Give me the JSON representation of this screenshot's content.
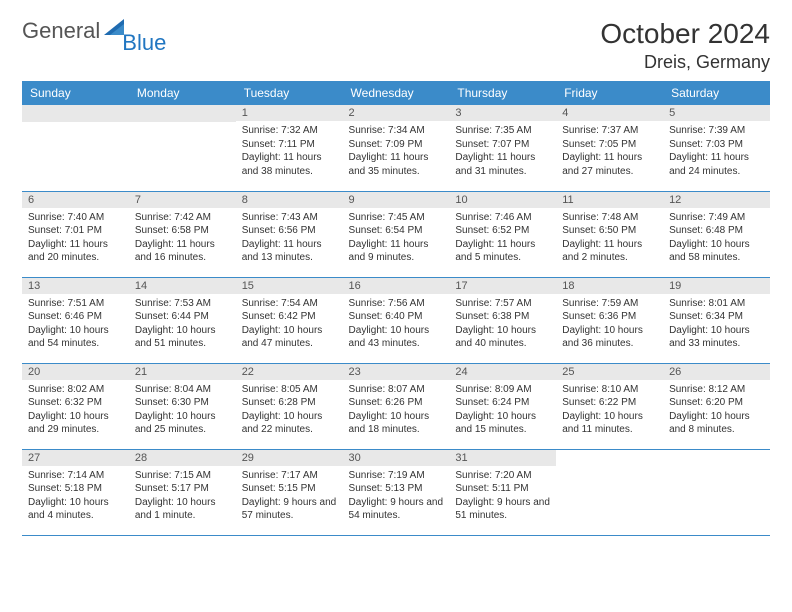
{
  "brand": {
    "part1": "General",
    "part2": "Blue"
  },
  "title": "October 2024",
  "location": "Dreis, Germany",
  "header_bg": "#3b8bc9",
  "header_fg": "#ffffff",
  "daynum_bg": "#e8e8e8",
  "border_color": "#3b8bc9",
  "weekdays": [
    "Sunday",
    "Monday",
    "Tuesday",
    "Wednesday",
    "Thursday",
    "Friday",
    "Saturday"
  ],
  "weeks": [
    [
      null,
      null,
      {
        "n": "1",
        "sr": "Sunrise: 7:32 AM",
        "ss": "Sunset: 7:11 PM",
        "dl": "Daylight: 11 hours and 38 minutes."
      },
      {
        "n": "2",
        "sr": "Sunrise: 7:34 AM",
        "ss": "Sunset: 7:09 PM",
        "dl": "Daylight: 11 hours and 35 minutes."
      },
      {
        "n": "3",
        "sr": "Sunrise: 7:35 AM",
        "ss": "Sunset: 7:07 PM",
        "dl": "Daylight: 11 hours and 31 minutes."
      },
      {
        "n": "4",
        "sr": "Sunrise: 7:37 AM",
        "ss": "Sunset: 7:05 PM",
        "dl": "Daylight: 11 hours and 27 minutes."
      },
      {
        "n": "5",
        "sr": "Sunrise: 7:39 AM",
        "ss": "Sunset: 7:03 PM",
        "dl": "Daylight: 11 hours and 24 minutes."
      }
    ],
    [
      {
        "n": "6",
        "sr": "Sunrise: 7:40 AM",
        "ss": "Sunset: 7:01 PM",
        "dl": "Daylight: 11 hours and 20 minutes."
      },
      {
        "n": "7",
        "sr": "Sunrise: 7:42 AM",
        "ss": "Sunset: 6:58 PM",
        "dl": "Daylight: 11 hours and 16 minutes."
      },
      {
        "n": "8",
        "sr": "Sunrise: 7:43 AM",
        "ss": "Sunset: 6:56 PM",
        "dl": "Daylight: 11 hours and 13 minutes."
      },
      {
        "n": "9",
        "sr": "Sunrise: 7:45 AM",
        "ss": "Sunset: 6:54 PM",
        "dl": "Daylight: 11 hours and 9 minutes."
      },
      {
        "n": "10",
        "sr": "Sunrise: 7:46 AM",
        "ss": "Sunset: 6:52 PM",
        "dl": "Daylight: 11 hours and 5 minutes."
      },
      {
        "n": "11",
        "sr": "Sunrise: 7:48 AM",
        "ss": "Sunset: 6:50 PM",
        "dl": "Daylight: 11 hours and 2 minutes."
      },
      {
        "n": "12",
        "sr": "Sunrise: 7:49 AM",
        "ss": "Sunset: 6:48 PM",
        "dl": "Daylight: 10 hours and 58 minutes."
      }
    ],
    [
      {
        "n": "13",
        "sr": "Sunrise: 7:51 AM",
        "ss": "Sunset: 6:46 PM",
        "dl": "Daylight: 10 hours and 54 minutes."
      },
      {
        "n": "14",
        "sr": "Sunrise: 7:53 AM",
        "ss": "Sunset: 6:44 PM",
        "dl": "Daylight: 10 hours and 51 minutes."
      },
      {
        "n": "15",
        "sr": "Sunrise: 7:54 AM",
        "ss": "Sunset: 6:42 PM",
        "dl": "Daylight: 10 hours and 47 minutes."
      },
      {
        "n": "16",
        "sr": "Sunrise: 7:56 AM",
        "ss": "Sunset: 6:40 PM",
        "dl": "Daylight: 10 hours and 43 minutes."
      },
      {
        "n": "17",
        "sr": "Sunrise: 7:57 AM",
        "ss": "Sunset: 6:38 PM",
        "dl": "Daylight: 10 hours and 40 minutes."
      },
      {
        "n": "18",
        "sr": "Sunrise: 7:59 AM",
        "ss": "Sunset: 6:36 PM",
        "dl": "Daylight: 10 hours and 36 minutes."
      },
      {
        "n": "19",
        "sr": "Sunrise: 8:01 AM",
        "ss": "Sunset: 6:34 PM",
        "dl": "Daylight: 10 hours and 33 minutes."
      }
    ],
    [
      {
        "n": "20",
        "sr": "Sunrise: 8:02 AM",
        "ss": "Sunset: 6:32 PM",
        "dl": "Daylight: 10 hours and 29 minutes."
      },
      {
        "n": "21",
        "sr": "Sunrise: 8:04 AM",
        "ss": "Sunset: 6:30 PM",
        "dl": "Daylight: 10 hours and 25 minutes."
      },
      {
        "n": "22",
        "sr": "Sunrise: 8:05 AM",
        "ss": "Sunset: 6:28 PM",
        "dl": "Daylight: 10 hours and 22 minutes."
      },
      {
        "n": "23",
        "sr": "Sunrise: 8:07 AM",
        "ss": "Sunset: 6:26 PM",
        "dl": "Daylight: 10 hours and 18 minutes."
      },
      {
        "n": "24",
        "sr": "Sunrise: 8:09 AM",
        "ss": "Sunset: 6:24 PM",
        "dl": "Daylight: 10 hours and 15 minutes."
      },
      {
        "n": "25",
        "sr": "Sunrise: 8:10 AM",
        "ss": "Sunset: 6:22 PM",
        "dl": "Daylight: 10 hours and 11 minutes."
      },
      {
        "n": "26",
        "sr": "Sunrise: 8:12 AM",
        "ss": "Sunset: 6:20 PM",
        "dl": "Daylight: 10 hours and 8 minutes."
      }
    ],
    [
      {
        "n": "27",
        "sr": "Sunrise: 7:14 AM",
        "ss": "Sunset: 5:18 PM",
        "dl": "Daylight: 10 hours and 4 minutes."
      },
      {
        "n": "28",
        "sr": "Sunrise: 7:15 AM",
        "ss": "Sunset: 5:17 PM",
        "dl": "Daylight: 10 hours and 1 minute."
      },
      {
        "n": "29",
        "sr": "Sunrise: 7:17 AM",
        "ss": "Sunset: 5:15 PM",
        "dl": "Daylight: 9 hours and 57 minutes."
      },
      {
        "n": "30",
        "sr": "Sunrise: 7:19 AM",
        "ss": "Sunset: 5:13 PM",
        "dl": "Daylight: 9 hours and 54 minutes."
      },
      {
        "n": "31",
        "sr": "Sunrise: 7:20 AM",
        "ss": "Sunset: 5:11 PM",
        "dl": "Daylight: 9 hours and 51 minutes."
      },
      null,
      null
    ]
  ]
}
